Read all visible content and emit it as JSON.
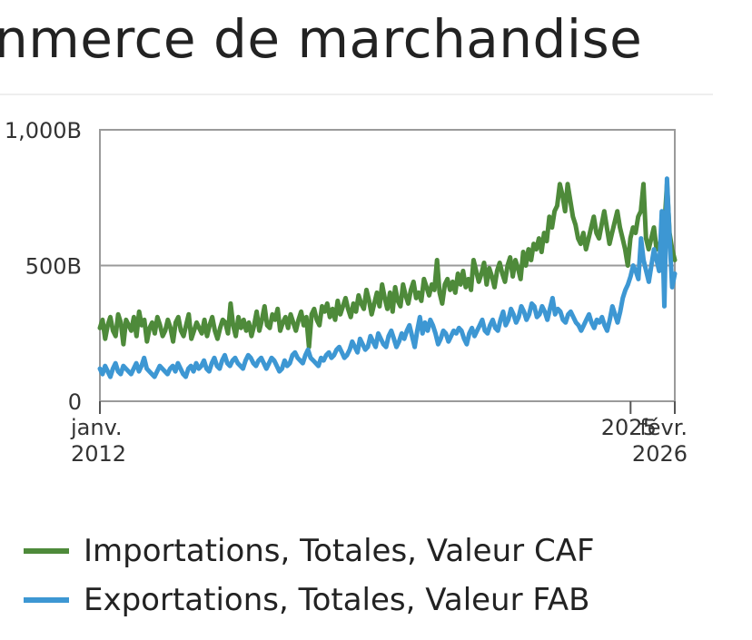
{
  "title": "nmerce de marchandise",
  "chart_data": {
    "type": "line",
    "title": "nmerce de marchandise",
    "y_ticks": [
      {
        "value": 0,
        "label": "0"
      },
      {
        "value": 500,
        "label": "500B"
      },
      {
        "value": 1000,
        "label": "1,000B"
      }
    ],
    "x_ticks": [
      {
        "date": "2012-01",
        "line1": "janv.",
        "line2": "2012"
      },
      {
        "date": "2025-01",
        "line1": "2025",
        "line2": ""
      },
      {
        "date": "2026-02",
        "line1": "févr.",
        "line2": "2026"
      }
    ],
    "xlim": [
      "2012-01",
      "2026-02"
    ],
    "ylim": [
      0,
      1000
    ],
    "grid": "horizontal",
    "legend_position": "bottom",
    "series": [
      {
        "name": "Importations, Totales, Valeur CAF",
        "color": "#4e8a3a",
        "start": "2012-01",
        "step": "month",
        "values": [
          280,
          220,
          310,
          270,
          240,
          290,
          310,
          260,
          230,
          280,
          300,
          250,
          260,
          240,
          300,
          280,
          220,
          310,
          290,
          260,
          270,
          230,
          300,
          280,
          260,
          280,
          250,
          230,
          270,
          290,
          250,
          240,
          260,
          280,
          230,
          250,
          270,
          240,
          280,
          260,
          300,
          320,
          290,
          260,
          280,
          250,
          240,
          270,
          300,
          260,
          280,
          250,
          270,
          310,
          300,
          290,
          260,
          270,
          310,
          260,
          290,
          320,
          280,
          300,
          260,
          310,
          290,
          270,
          250,
          290,
          240,
          300,
          280,
          320,
          300,
          340,
          310,
          290,
          330,
          350,
          310,
          300,
          340,
          320,
          330,
          310,
          350,
          330,
          380,
          350,
          340,
          360,
          390,
          330,
          370,
          400,
          380,
          350,
          390,
          410,
          370,
          400,
          380,
          420,
          390,
          430,
          400,
          380,
          410,
          440,
          400,
          430,
          420,
          450,
          400,
          420,
          390,
          410,
          460,
          430,
          400,
          380,
          420,
          450,
          430,
          410,
          460,
          440,
          420,
          480,
          440,
          500,
          460,
          420,
          440,
          480,
          500,
          470,
          450,
          490,
          530,
          480,
          520,
          500,
          540,
          520,
          560,
          580,
          530,
          570,
          600,
          560,
          620,
          600,
          660,
          650,
          700,
          720,
          750,
          700,
          680,
          720,
          700,
          650,
          600,
          580,
          550,
          560,
          600,
          620,
          640,
          600,
          580,
          620,
          650,
          640,
          600,
          560,
          580,
          600,
          640,
          620,
          660,
          600,
          580,
          610,
          640,
          700,
          680,
          620,
          590,
          610,
          660,
          690,
          640,
          600,
          560,
          580,
          620,
          600,
          640,
          620,
          680,
          700,
          560,
          520,
          540,
          590,
          620,
          600,
          640,
          660,
          610
        ],
        "raw_values": [
          270,
          300,
          230,
          280,
          310,
          260,
          240,
          320,
          290,
          210,
          300,
          280,
          260,
          310,
          240,
          330,
          280,
          300,
          220,
          270,
          290,
          250,
          310,
          280,
          240,
          260,
          300,
          270,
          220,
          290,
          310,
          260,
          240,
          280,
          320,
          230,
          260,
          290,
          270,
          250,
          300,
          240,
          280,
          310,
          260,
          230,
          270,
          300,
          290,
          250,
          360,
          280,
          240,
          310,
          270,
          300,
          260,
          290,
          240,
          280,
          330,
          260,
          300,
          350,
          280,
          270,
          320,
          300,
          340,
          260,
          290,
          310,
          270,
          320,
          290,
          260,
          300,
          330,
          280,
          310,
          200,
          320,
          340,
          300,
          280,
          350,
          330,
          360,
          310,
          340,
          300,
          370,
          320,
          350,
          380,
          340,
          310,
          360,
          330,
          390,
          360,
          340,
          410,
          370,
          320,
          360,
          400,
          350,
          430,
          380,
          340,
          400,
          330,
          420,
          370,
          350,
          430,
          390,
          360,
          410,
          440,
          380,
          400,
          370,
          450,
          420,
          390,
          430,
          410,
          520,
          400,
          360,
          430,
          450,
          410,
          440,
          400,
          470,
          430,
          480,
          420,
          450,
          410,
          520,
          480,
          440,
          470,
          510,
          430,
          490,
          460,
          420,
          480,
          510,
          470,
          440,
          500,
          530,
          460,
          520,
          490,
          450,
          550,
          500,
          560,
          520,
          580,
          560,
          600,
          550,
          620,
          590,
          680,
          640,
          700,
          720,
          800,
          760,
          700,
          800,
          740,
          680,
          650,
          600,
          580,
          620,
          560,
          600,
          640,
          680,
          620,
          600,
          650,
          700,
          640,
          580,
          620,
          660,
          700,
          640,
          600,
          560,
          500,
          600,
          640,
          620,
          680,
          700,
          800,
          600,
          560,
          600,
          640,
          560,
          580,
          520,
          640,
          800,
          620,
          560,
          520
        ],
        "use_raw": true
      },
      {
        "name": "Exportations, Totales, Valeur FAB",
        "color": "#3d97d3",
        "start": "2012-01",
        "step": "month",
        "values": [],
        "raw_values": [
          120,
          100,
          130,
          110,
          90,
          120,
          140,
          110,
          100,
          130,
          120,
          110,
          100,
          120,
          140,
          110,
          130,
          160,
          120,
          110,
          100,
          90,
          110,
          130,
          120,
          110,
          100,
          120,
          130,
          110,
          140,
          120,
          100,
          90,
          120,
          130,
          110,
          140,
          120,
          130,
          150,
          120,
          110,
          140,
          160,
          130,
          120,
          150,
          170,
          140,
          130,
          150,
          160,
          140,
          130,
          120,
          150,
          170,
          160,
          140,
          130,
          150,
          160,
          140,
          120,
          140,
          160,
          150,
          130,
          110,
          120,
          150,
          130,
          140,
          170,
          180,
          160,
          150,
          140,
          170,
          190,
          160,
          150,
          140,
          130,
          160,
          150,
          170,
          180,
          160,
          170,
          190,
          200,
          180,
          160,
          170,
          190,
          220,
          200,
          180,
          230,
          210,
          190,
          200,
          240,
          220,
          200,
          250,
          230,
          210,
          200,
          240,
          260,
          230,
          200,
          220,
          250,
          230,
          260,
          280,
          240,
          200,
          260,
          310,
          250,
          290,
          260,
          300,
          280,
          250,
          210,
          230,
          260,
          250,
          220,
          240,
          260,
          250,
          270,
          260,
          230,
          210,
          250,
          270,
          240,
          260,
          280,
          300,
          260,
          250,
          280,
          300,
          270,
          260,
          300,
          330,
          280,
          300,
          340,
          320,
          290,
          310,
          350,
          330,
          300,
          320,
          360,
          350,
          310,
          320,
          350,
          330,
          300,
          340,
          380,
          320,
          340,
          330,
          300,
          290,
          320,
          330,
          310,
          290,
          280,
          260,
          280,
          300,
          320,
          290,
          270,
          300,
          290,
          310,
          280,
          260,
          300,
          350,
          320,
          290,
          330,
          380,
          410,
          430,
          460,
          500,
          480,
          450,
          600,
          520,
          480,
          440,
          500,
          560,
          520,
          480,
          700,
          350,
          820,
          600,
          420,
          470
        ]
      }
    ]
  },
  "legend": [
    {
      "label": "Importations, Totales, Valeur CAF",
      "color": "#4e8a3a"
    },
    {
      "label": "Exportations, Totales, Valeur FAB",
      "color": "#3d97d3"
    }
  ]
}
